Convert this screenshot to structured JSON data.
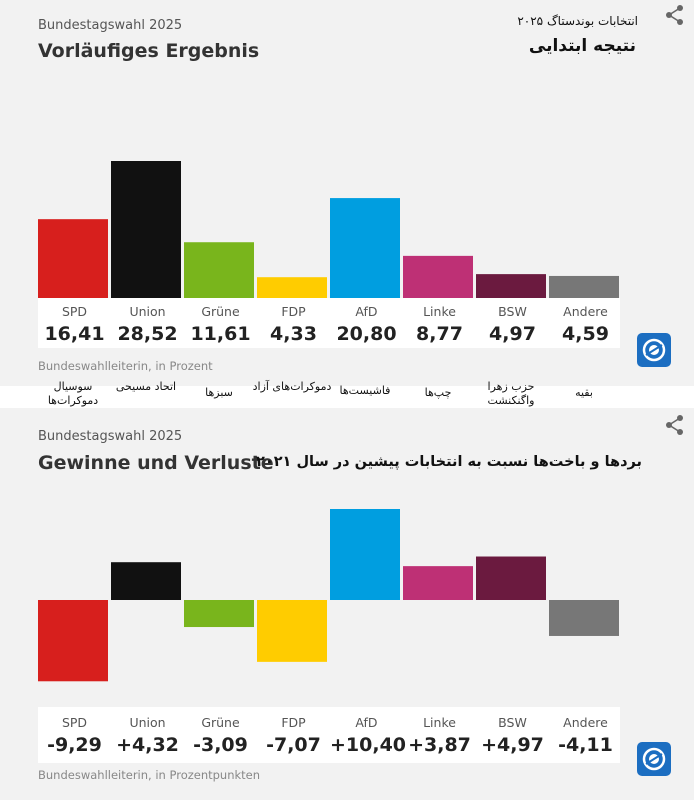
{
  "result_panel": {
    "title_small": "Bundestagswahl 2025",
    "title_big": "Vorläufiges Ergebnis",
    "fa_subtitle": "انتخابات بوندستاگ ۲۰۲۵",
    "fa_title": "نتیجه ابتدایی",
    "source": "Bundeswahlleiterin, in Prozent",
    "icon": "share-icon"
  },
  "change_panel": {
    "title_small": "Bundestagswahl 2025",
    "title_big": "Gewinne und Verluste",
    "fa_title": "بردها و باخت‌ها نسبت به انتخابات پیشین در سال ۲۰۲۱",
    "source": "Bundeswahlleiterin, in Prozentpunkten",
    "icon": "share-icon"
  },
  "persian_party_names": [
    "سوسیال دموکرات‌ها",
    "اتحاد مسیحی",
    "سبزها",
    "دموکرات‌های آزاد",
    "فاشیست‌ها",
    "چپ‌ها",
    "حزب زهرا واگنکنشت",
    "بقیه"
  ],
  "colors": {
    "SPD": "#d71f1d",
    "Union": "#111111",
    "Grune": "#79b51c",
    "FDP": "#ffcc00",
    "AfD": "#009ee0",
    "Linke": "#be3075",
    "BSW": "#6b1a3f",
    "Andere": "#777777",
    "logo": "#1c6ec1"
  },
  "chart_data": [
    {
      "type": "bar",
      "categories": [
        "SPD",
        "Union",
        "Grüne",
        "FDP",
        "AfD",
        "Linke",
        "BSW",
        "Andere"
      ],
      "values": [
        16.41,
        28.52,
        11.61,
        4.33,
        20.8,
        8.77,
        4.97,
        4.59
      ],
      "value_labels": [
        "16,41",
        "28,52",
        "11,61",
        "4,33",
        "20,80",
        "8,77",
        "4,97",
        "4,59"
      ],
      "title": "Vorläufiges Ergebnis",
      "ylim": [
        0,
        28.52
      ],
      "grid": false
    },
    {
      "type": "bar",
      "categories": [
        "SPD",
        "Union",
        "Grüne",
        "FDP",
        "AfD",
        "Linke",
        "BSW",
        "Andere"
      ],
      "values": [
        -9.29,
        4.32,
        -3.09,
        -7.07,
        10.4,
        3.87,
        4.97,
        -4.11
      ],
      "value_labels": [
        "-9,29",
        "+4,32",
        "-3,09",
        "-7,07",
        "+10,40",
        "+3,87",
        "+4,97",
        "-4,11"
      ],
      "title": "Gewinne und Verluste",
      "ylim": [
        -9.29,
        10.4
      ],
      "grid": false
    }
  ]
}
